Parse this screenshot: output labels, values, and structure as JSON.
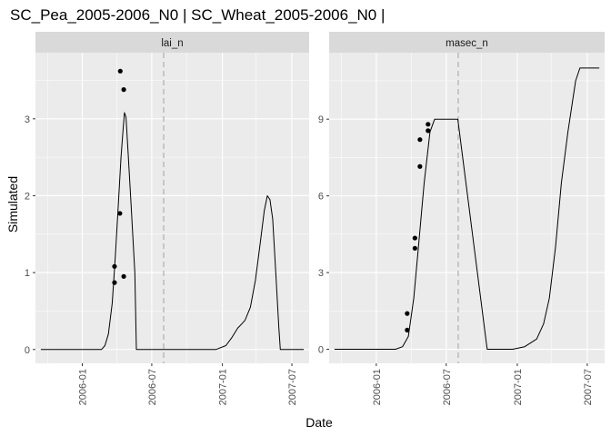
{
  "title": "SC_Pea_2005-2006_N0 | SC_Wheat_2005-2006_N0 |",
  "xlabel": "Date",
  "ylabel": "Simulated",
  "colors": {
    "panel_bg": "#ebebeb",
    "strip_bg": "#d9d9d9",
    "grid": "#ffffff",
    "line": "#000000",
    "points": "#000000",
    "vline": "#bdbdbd"
  },
  "chart_data": [
    {
      "type": "line",
      "facet": "lai_n",
      "vline_date": "2006-08-01",
      "xlim": [
        "2005-09-01",
        "2007-08-15"
      ],
      "ylim": [
        -0.18,
        3.86
      ],
      "x_ticks": [
        "2006-01",
        "2006-07",
        "2007-01",
        "2007-07"
      ],
      "x_tick_dates": [
        "2006-01-01",
        "2006-07-01",
        "2007-01-01",
        "2007-07-01"
      ],
      "y_ticks": [
        0,
        1,
        2,
        3
      ],
      "y_tick_labels": [
        "0",
        "1",
        "2",
        "3"
      ],
      "grid": true,
      "series": [
        {
          "kind": "line",
          "points": [
            [
              "2005-09-15",
              0
            ],
            [
              "2006-02-20",
              0
            ],
            [
              "2006-03-01",
              0.05
            ],
            [
              "2006-03-10",
              0.2
            ],
            [
              "2006-03-20",
              0.6
            ],
            [
              "2006-03-28",
              1.2
            ],
            [
              "2006-04-05",
              1.9
            ],
            [
              "2006-04-12",
              2.5
            ],
            [
              "2006-04-17",
              2.85
            ],
            [
              "2006-04-21",
              3.08
            ],
            [
              "2006-04-25",
              3.02
            ],
            [
              "2006-04-30",
              2.6
            ],
            [
              "2006-05-08",
              1.9
            ],
            [
              "2006-05-18",
              1.0
            ],
            [
              "2006-05-22",
              0
            ],
            [
              "2006-12-15",
              0
            ],
            [
              "2007-01-10",
              0.05
            ],
            [
              "2007-01-25",
              0.15
            ],
            [
              "2007-02-10",
              0.28
            ],
            [
              "2007-02-20",
              0.33
            ],
            [
              "2007-03-01",
              0.38
            ],
            [
              "2007-03-15",
              0.55
            ],
            [
              "2007-03-28",
              0.9
            ],
            [
              "2007-04-10",
              1.4
            ],
            [
              "2007-04-20",
              1.8
            ],
            [
              "2007-04-28",
              2.0
            ],
            [
              "2007-05-05",
              1.95
            ],
            [
              "2007-05-12",
              1.7
            ],
            [
              "2007-05-20",
              1.0
            ],
            [
              "2007-05-28",
              0.3
            ],
            [
              "2007-06-01",
              0
            ],
            [
              "2007-08-01",
              0
            ]
          ]
        },
        {
          "kind": "scatter",
          "points": [
            [
              "2006-03-26",
              1.08
            ],
            [
              "2006-03-26",
              0.87
            ],
            [
              "2006-04-09",
              1.77
            ],
            [
              "2006-04-10",
              3.62
            ],
            [
              "2006-04-19",
              3.38
            ],
            [
              "2006-04-19",
              0.95
            ]
          ]
        }
      ]
    },
    {
      "type": "line",
      "facet": "masec_n",
      "vline_date": "2006-08-01",
      "xlim": [
        "2005-09-01",
        "2007-08-15"
      ],
      "ylim": [
        -0.55,
        11.6
      ],
      "x_ticks": [
        "2006-01",
        "2006-07",
        "2007-01",
        "2007-07"
      ],
      "x_tick_dates": [
        "2006-01-01",
        "2006-07-01",
        "2007-01-01",
        "2007-07-01"
      ],
      "y_ticks": [
        0,
        3,
        6,
        9
      ],
      "y_tick_labels": [
        "0",
        "3",
        "6",
        "9"
      ],
      "grid": true,
      "series": [
        {
          "kind": "line",
          "points": [
            [
              "2005-09-15",
              0
            ],
            [
              "2006-02-20",
              0
            ],
            [
              "2006-03-10",
              0.1
            ],
            [
              "2006-03-25",
              0.5
            ],
            [
              "2006-04-08",
              2.0
            ],
            [
              "2006-04-20",
              4.0
            ],
            [
              "2006-05-05",
              6.5
            ],
            [
              "2006-05-20",
              8.5
            ],
            [
              "2006-06-01",
              9.0
            ],
            [
              "2006-07-31",
              9.0
            ],
            [
              "2006-10-15",
              0
            ],
            [
              "2006-12-20",
              0
            ],
            [
              "2007-01-20",
              0.1
            ],
            [
              "2007-02-20",
              0.4
            ],
            [
              "2007-03-10",
              1.0
            ],
            [
              "2007-03-25",
              2.0
            ],
            [
              "2007-04-10",
              4.0
            ],
            [
              "2007-04-25",
              6.5
            ],
            [
              "2007-05-12",
              8.5
            ],
            [
              "2007-06-01",
              10.5
            ],
            [
              "2007-06-12",
              11.0
            ],
            [
              "2007-08-01",
              11.0
            ]
          ]
        },
        {
          "kind": "scatter",
          "points": [
            [
              "2006-03-22",
              1.4
            ],
            [
              "2006-03-22",
              0.75
            ],
            [
              "2006-04-11",
              3.95
            ],
            [
              "2006-04-11",
              4.35
            ],
            [
              "2006-04-24",
              7.15
            ],
            [
              "2006-04-24",
              8.2
            ],
            [
              "2006-05-15",
              8.55
            ],
            [
              "2006-05-15",
              8.8
            ]
          ]
        }
      ]
    }
  ]
}
